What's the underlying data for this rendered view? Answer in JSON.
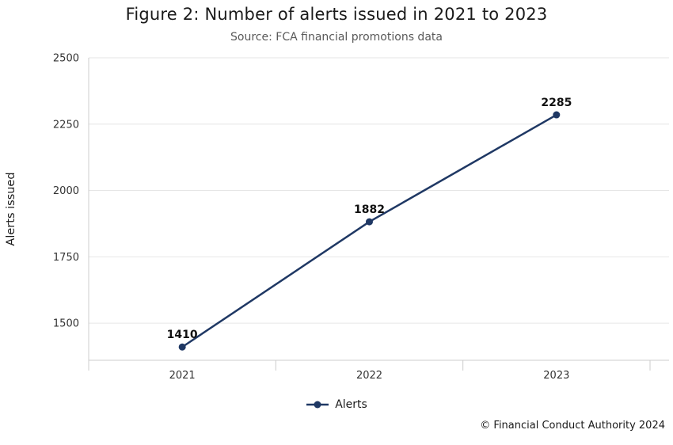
{
  "chart_data": {
    "type": "line",
    "title": "Figure 2: Number of alerts issued in 2021 to 2023",
    "subtitle": "Source: FCA financial promotions data",
    "ylabel": "Alerts issued",
    "xlabel": "",
    "categories": [
      "2021",
      "2022",
      "2023"
    ],
    "series": [
      {
        "name": "Alerts",
        "values": [
          1410,
          1882,
          2285
        ]
      }
    ],
    "yticks": [
      1500,
      1750,
      2000,
      2250,
      2500
    ],
    "ylim": [
      1360,
      2500
    ],
    "grid": true,
    "legend_position": "bottom",
    "line_color": "#1f3864",
    "grid_color": "#e6e6e6",
    "axis_color": "#cccccc"
  },
  "legend": {
    "items": [
      {
        "label": "Alerts",
        "color": "#1f3864"
      }
    ]
  },
  "footer": {
    "copyright": "© Financial Conduct Authority 2024"
  }
}
